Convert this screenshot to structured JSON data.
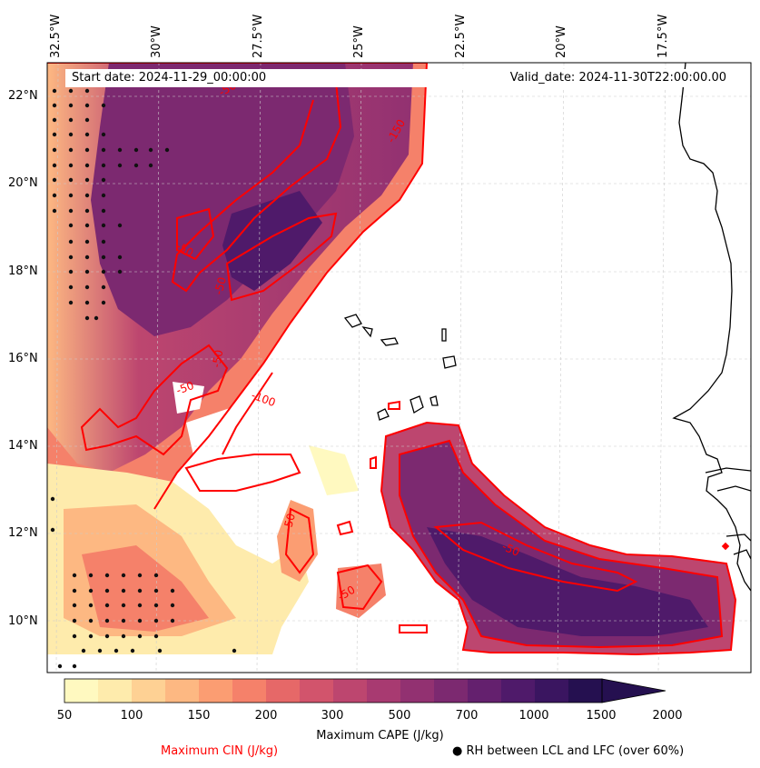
{
  "map": {
    "start_label": "Start date: 2024-11-29_00:00:00",
    "valid_label": "Valid_date: 2024-11-30T22:00:00.00",
    "lon_labels": [
      "32.5°W",
      "30°W",
      "27.5°W",
      "25°W",
      "22.5°W",
      "20°W",
      "17.5°W"
    ],
    "lat_labels": [
      "22°N",
      "20°N",
      "18°N",
      "16°N",
      "14°N",
      "12°N",
      "10°N"
    ],
    "cin_contours": [
      "-50",
      "-150",
      "-50",
      "-50",
      "-50",
      "-100",
      "-50",
      "-50",
      "-50",
      "-50"
    ]
  },
  "colorbar": {
    "title": "Maximum CAPE (J/kg)",
    "ticks": [
      "50",
      "100",
      "150",
      "200",
      "300",
      "500",
      "700",
      "1000",
      "1500",
      "2000"
    ],
    "colors": [
      "#fff9c0",
      "#feebac",
      "#fed194",
      "#fdb882",
      "#fb9d72",
      "#f5816a",
      "#e66868",
      "#d2546c",
      "#bd466f",
      "#a83a71",
      "#923171",
      "#7c2970",
      "#64206e",
      "#4f1a6a",
      "#3a1560",
      "#251050"
    ]
  },
  "legend": {
    "cin_label": "Maximum CIN (J/kg)",
    "rh_label": "RH between LCL and LFC (over 60%)"
  }
}
